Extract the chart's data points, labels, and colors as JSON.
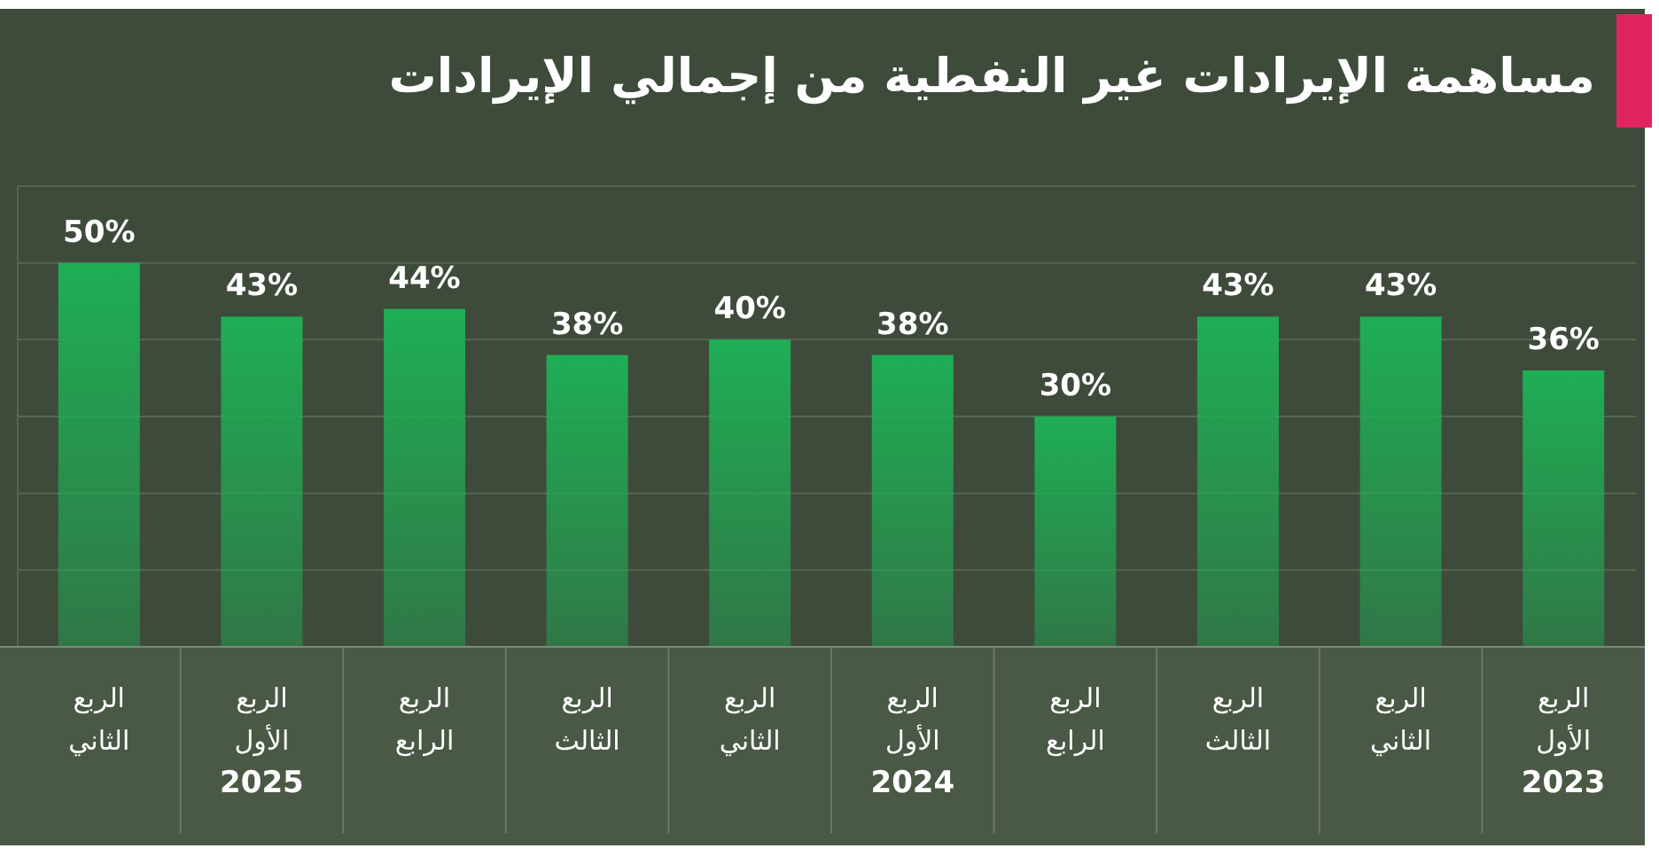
{
  "chart_data": {
    "type": "bar",
    "title": "مساهمة الإيرادات غير النفطية من إجمالي الإيرادات",
    "categories": [
      "الربع الثاني",
      "الربع الأول 2025",
      "الربع الرابع",
      "الربع الثالث",
      "الربع الثاني",
      "الربع الأول 2024",
      "الربع الرابع",
      "الربع الثالث",
      "الربع الثاني",
      "الربع الأول 2023"
    ],
    "values": [
      50,
      43,
      44,
      38,
      40,
      38,
      30,
      43,
      43,
      36
    ],
    "value_labels": [
      "50%",
      "43%",
      "44%",
      "38%",
      "40%",
      "38%",
      "30%",
      "43%",
      "43%",
      "36%"
    ],
    "color": "#1fae55",
    "ylim": [
      0,
      60
    ],
    "yticks": [
      {
        "value": 10,
        "label": null
      },
      {
        "value": 20,
        "label": null
      },
      {
        "value": 30,
        "label": null
      },
      {
        "value": 40,
        "label": null
      },
      {
        "value": 50,
        "label": null
      }
    ],
    "grid": "y",
    "tick_labels": "x"
  }
}
